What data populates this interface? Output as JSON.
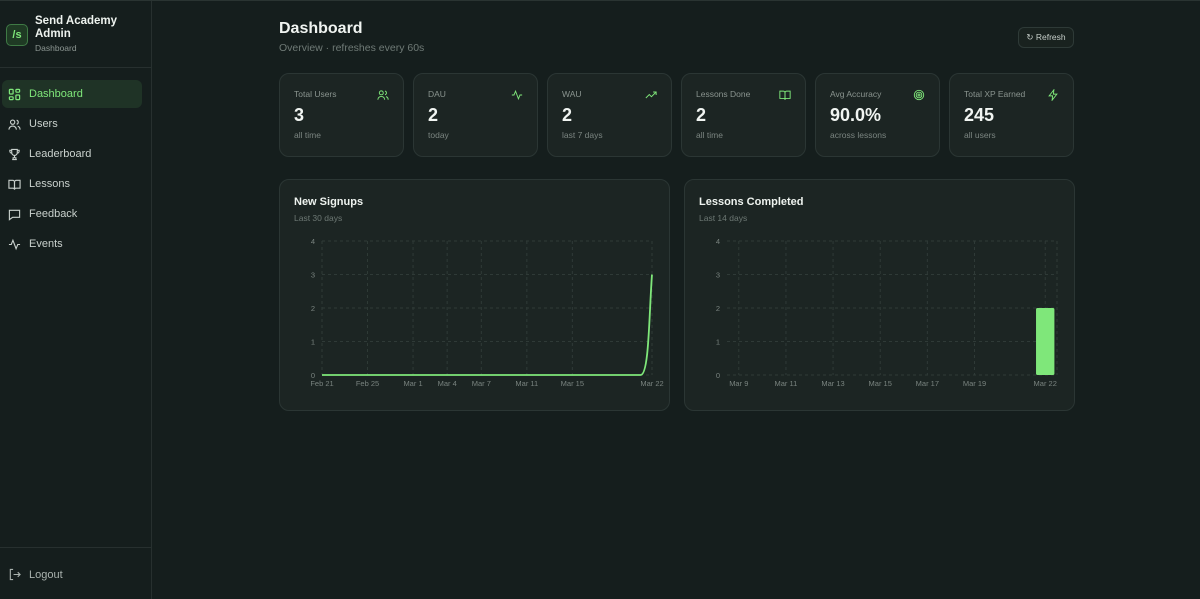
{
  "brand": {
    "logo": "/s",
    "name": "Send Academy Admin",
    "sub": "Dashboard"
  },
  "nav": [
    {
      "label": "Dashboard",
      "icon": "grid-icon",
      "active": true
    },
    {
      "label": "Users",
      "icon": "users-icon"
    },
    {
      "label": "Leaderboard",
      "icon": "trophy-icon"
    },
    {
      "label": "Lessons",
      "icon": "book-icon"
    },
    {
      "label": "Feedback",
      "icon": "message-icon"
    },
    {
      "label": "Events",
      "icon": "activity-icon"
    }
  ],
  "logout_label": "Logout",
  "header": {
    "title": "Dashboard",
    "subtitle": "Overview · refreshes every 60s",
    "refresh_label": "↻ Refresh"
  },
  "stats": [
    {
      "label": "Total Users",
      "value": "3",
      "caption": "all time",
      "icon": "users-icon"
    },
    {
      "label": "DAU",
      "value": "2",
      "caption": "today",
      "icon": "activity-icon"
    },
    {
      "label": "WAU",
      "value": "2",
      "caption": "last 7 days",
      "icon": "trending-up-icon"
    },
    {
      "label": "Lessons Done",
      "value": "2",
      "caption": "all time",
      "icon": "book-icon"
    },
    {
      "label": "Avg Accuracy",
      "value": "90.0%",
      "caption": "across lessons",
      "icon": "target-icon"
    },
    {
      "label": "Total XP Earned",
      "value": "245",
      "caption": "all users",
      "icon": "zap-icon"
    }
  ],
  "colors": {
    "accent": "#7fe77a",
    "background": "#151e1d",
    "card": "#1c2523"
  },
  "chart_data": [
    {
      "type": "line",
      "title": "New Signups",
      "subtitle": "Last 30 days",
      "x_ticks": [
        "Feb 21",
        "Feb 25",
        "Mar 1",
        "Mar 4",
        "Mar 7",
        "Mar 11",
        "Mar 15",
        "Mar 22"
      ],
      "x": [
        "Feb 21",
        "Feb 22",
        "Feb 23",
        "Feb 24",
        "Feb 25",
        "Feb 26",
        "Feb 27",
        "Feb 28",
        "Mar 1",
        "Mar 2",
        "Mar 3",
        "Mar 4",
        "Mar 5",
        "Mar 6",
        "Mar 7",
        "Mar 8",
        "Mar 9",
        "Mar 10",
        "Mar 11",
        "Mar 12",
        "Mar 13",
        "Mar 14",
        "Mar 15",
        "Mar 16",
        "Mar 17",
        "Mar 18",
        "Mar 19",
        "Mar 20",
        "Mar 21",
        "Mar 22"
      ],
      "values": [
        0,
        0,
        0,
        0,
        0,
        0,
        0,
        0,
        0,
        0,
        0,
        0,
        0,
        0,
        0,
        0,
        0,
        0,
        0,
        0,
        0,
        0,
        0,
        0,
        0,
        0,
        0,
        0,
        0,
        3
      ],
      "y_ticks": [
        0,
        1,
        2,
        3,
        4
      ],
      "ylim": [
        0,
        4
      ]
    },
    {
      "type": "bar",
      "title": "Lessons Completed",
      "subtitle": "Last 14 days",
      "x_ticks": [
        "Mar 9",
        "Mar 11",
        "Mar 13",
        "Mar 15",
        "Mar 17",
        "Mar 19",
        "Mar 22"
      ],
      "x": [
        "Mar 9",
        "Mar 10",
        "Mar 11",
        "Mar 12",
        "Mar 13",
        "Mar 14",
        "Mar 15",
        "Mar 16",
        "Mar 17",
        "Mar 18",
        "Mar 19",
        "Mar 20",
        "Mar 21",
        "Mar 22"
      ],
      "values": [
        0,
        0,
        0,
        0,
        0,
        0,
        0,
        0,
        0,
        0,
        0,
        0,
        0,
        2
      ],
      "y_ticks": [
        0,
        1,
        2,
        3,
        4
      ],
      "ylim": [
        0,
        4
      ]
    }
  ]
}
